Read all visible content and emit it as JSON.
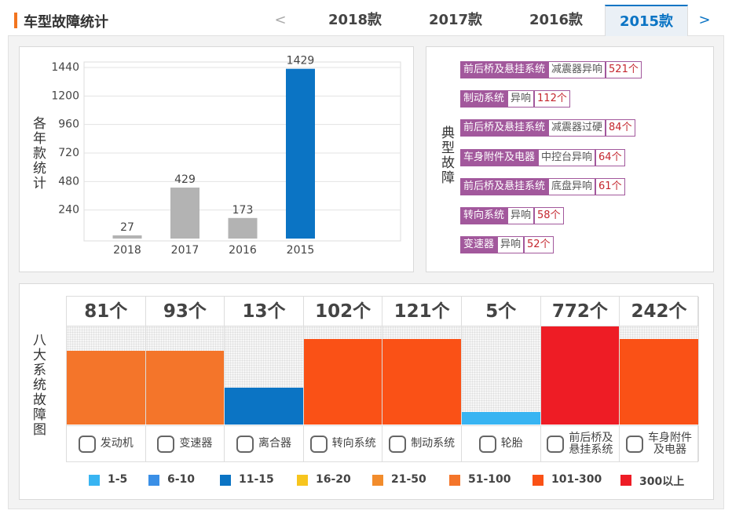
{
  "header": {
    "title": "车型故障统计"
  },
  "tabs": {
    "prev": "<",
    "items": [
      "2018款",
      "2017款",
      "2016款",
      "2015款"
    ],
    "active": 3,
    "next": ">"
  },
  "chart_data": [
    {
      "type": "bar",
      "ylabel": "各年款统计",
      "categories": [
        "2018",
        "2017",
        "2016",
        "2015"
      ],
      "values": [
        27,
        429,
        173,
        1429
      ],
      "colors": [
        "#b3b3b3",
        "#b3b3b3",
        "#b3b3b3",
        "#0b74c4"
      ],
      "ylim": [
        0,
        1440
      ],
      "yticks": [
        240,
        480,
        720,
        960,
        1200,
        1440
      ],
      "grid": true
    },
    {
      "type": "heatbar",
      "ylabel": "八大系统故障图",
      "categories": [
        "发动机",
        "变速器",
        "离合器",
        "转向系统",
        "制动系统",
        "轮胎",
        "前后桥及悬挂系统",
        "车身附件及电器"
      ],
      "values": [
        81,
        93,
        13,
        102,
        121,
        5,
        772,
        242
      ],
      "value_labels": [
        "81个",
        "93个",
        "13个",
        "102个",
        "121个",
        "5个",
        "772个",
        "242个"
      ],
      "legend": [
        {
          "label": "1-5",
          "min": 1,
          "color": "#38b4f2"
        },
        {
          "label": "6-10",
          "min": 6,
          "color": "#3a8fe6"
        },
        {
          "label": "11-15",
          "min": 11,
          "color": "#0b74c4"
        },
        {
          "label": "16-20",
          "min": 16,
          "color": "#f7c51e"
        },
        {
          "label": "21-50",
          "min": 21,
          "color": "#f28c2c"
        },
        {
          "label": "51-100",
          "min": 51,
          "color": "#f4752a"
        },
        {
          "label": "101-300",
          "min": 101,
          "color": "#fa5116"
        },
        {
          "label": "300以上",
          "min": 301,
          "color": "#ee1c25"
        }
      ]
    }
  ],
  "faults": {
    "title": "典型故障",
    "items": [
      {
        "system": "前后桥及悬挂系统",
        "fault": "减震器异响",
        "count": "521个"
      },
      {
        "system": "制动系统",
        "fault": "异响",
        "count": "112个"
      },
      {
        "system": "前后桥及悬挂系统",
        "fault": "减震器过硬",
        "count": "84个"
      },
      {
        "system": "车身附件及电器",
        "fault": "中控台异响",
        "count": "64个"
      },
      {
        "system": "前后桥及悬挂系统",
        "fault": "底盘异响",
        "count": "61个"
      },
      {
        "system": "转向系统",
        "fault": "异响",
        "count": "58个"
      },
      {
        "system": "变速器",
        "fault": "异响",
        "count": "52个"
      }
    ]
  }
}
